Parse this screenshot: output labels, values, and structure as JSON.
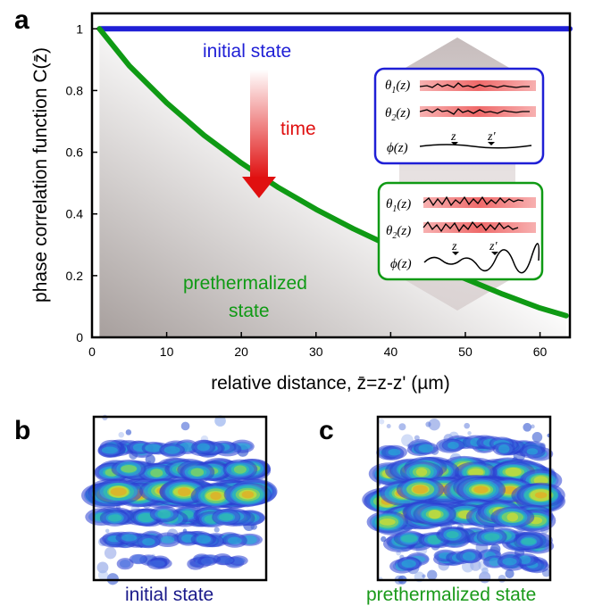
{
  "panel_labels": {
    "a": "a",
    "b": "b",
    "c": "c"
  },
  "annotations": {
    "initial_state": "initial state",
    "time": "time",
    "prethermalized_line1": "prethermalized",
    "prethermalized_line2": "state"
  },
  "inset": {
    "theta1": "θ",
    "theta1_sub": "1",
    "theta1_arg": "(z)",
    "theta2": "θ",
    "theta2_sub": "2",
    "theta2_arg": "(z)",
    "phi": "ϕ(z)",
    "z": "z",
    "zprime": "z'"
  },
  "captions": {
    "b": "initial state",
    "c": "prethermalized state"
  },
  "colors": {
    "initial": "#1f1fd6",
    "prethermalized": "#0f9a14",
    "time_arrow": "#e01010",
    "caption_b": "#1a1a8a",
    "caption_c": "#1a9a1a"
  },
  "chart_data": {
    "type": "line",
    "xlabel": "relative distance, z̄=z-z' (µm)",
    "ylabel": "phase correlation function C(z̄)",
    "xlim": [
      0,
      64
    ],
    "ylim": [
      0,
      1.05
    ],
    "x_ticks": [
      0,
      10,
      20,
      30,
      40,
      50,
      60
    ],
    "y_ticks": [
      0,
      0.2,
      0.4,
      0.6,
      0.8,
      1
    ],
    "y_tick_labels": [
      "0",
      "0.2",
      "0.4",
      "0.6",
      "0.8",
      "1"
    ],
    "grid": false,
    "series": [
      {
        "name": "initial state",
        "x": [
          1,
          64
        ],
        "y": [
          1.0,
          1.0
        ]
      },
      {
        "name": "prethermalized state",
        "x": [
          1,
          5,
          10,
          15,
          20,
          25,
          30,
          35,
          40,
          45,
          50,
          55,
          60,
          63.5
        ],
        "y": [
          1.0,
          0.88,
          0.76,
          0.655,
          0.565,
          0.485,
          0.415,
          0.352,
          0.295,
          0.24,
          0.19,
          0.14,
          0.095,
          0.07
        ]
      }
    ]
  }
}
